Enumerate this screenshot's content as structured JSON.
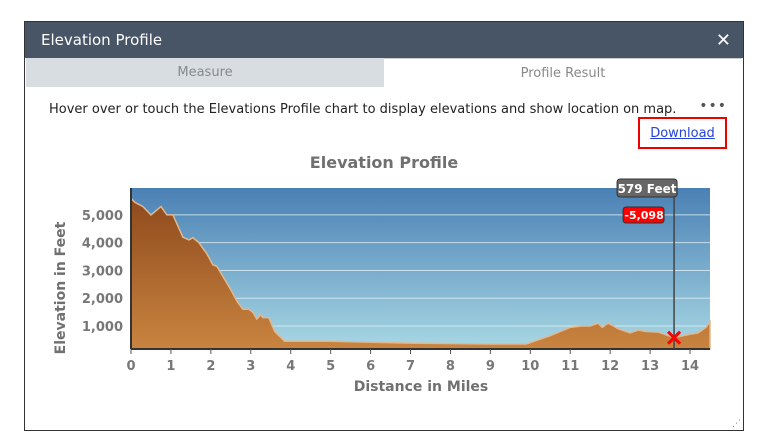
{
  "window": {
    "title": "Elevation Profile",
    "close_icon": "close-icon"
  },
  "tabs": [
    {
      "label": "Measure",
      "active": false
    },
    {
      "label": "Profile Result",
      "active": true
    }
  ],
  "info_text": "Hover over or touch the Elevations Profile chart to display elevations and show location on map.",
  "menu_icon": "more-horizontal-icon",
  "download_label": "Download",
  "colors": {
    "header": "#485566",
    "terrain_top": "#8e4a1c",
    "terrain_bottom": "#c98440",
    "sky_top": "#4a80b4",
    "sky_bottom": "#a8d8e4",
    "highlight": "#ff0000"
  },
  "chart_data": {
    "type": "area",
    "title": "Elevation Profile",
    "xlabel": "Distance in Miles",
    "ylabel": "Elevation in Feet",
    "xlim": [
      0,
      14.5
    ],
    "ylim": [
      170,
      5970
    ],
    "xticks": [
      0,
      1,
      2,
      3,
      4,
      5,
      6,
      7,
      8,
      9,
      10,
      11,
      12,
      13,
      14
    ],
    "yticks": [
      1000,
      2000,
      3000,
      4000,
      5000
    ],
    "ytick_labels": [
      "1,000",
      "2,000",
      "3,000",
      "4,000",
      "5,000"
    ],
    "grid": true,
    "x": [
      0,
      0.1,
      0.3,
      0.5,
      0.75,
      0.9,
      1.05,
      1.3,
      1.45,
      1.55,
      1.7,
      1.9,
      2.05,
      2.15,
      2.5,
      2.65,
      2.8,
      2.95,
      3.05,
      3.15,
      3.25,
      3.3,
      3.45,
      3.6,
      3.85,
      5,
      7,
      9,
      9.9,
      10.5,
      11,
      11.3,
      11.5,
      11.7,
      11.8,
      11.95,
      12.2,
      12.5,
      12.7,
      12.9,
      13.2,
      13.6,
      14,
      14.2,
      14.4,
      14.5
    ],
    "y": [
      5600,
      5450,
      5300,
      5000,
      5300,
      5000,
      5000,
      4200,
      4100,
      4180,
      4000,
      3600,
      3200,
      3150,
      2300,
      1900,
      1600,
      1600,
      1500,
      1250,
      1400,
      1300,
      1300,
      800,
      450,
      450,
      380,
      350,
      350,
      650,
      950,
      1000,
      1000,
      1100,
      950,
      1100,
      900,
      750,
      850,
      800,
      780,
      579,
      700,
      750,
      950,
      1150
    ],
    "hover": {
      "x": 13.6,
      "elevation_label": "579 Feet",
      "delta_label": "-5,098"
    }
  }
}
